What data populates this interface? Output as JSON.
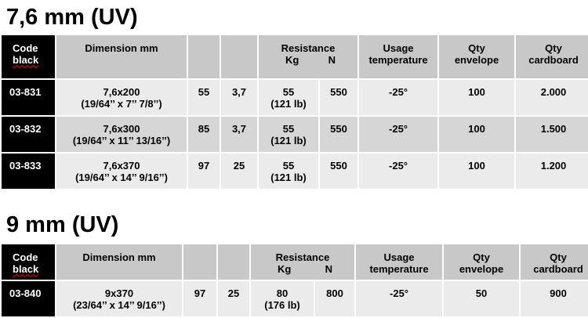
{
  "section1": {
    "title": "7,6 mm  (UV)",
    "headers": {
      "code_line1": "Code",
      "code_line2": "black",
      "dimension": "Dimension mm",
      "blank1": "",
      "blank2": "",
      "resistance": "Resistance",
      "kg": "Kg",
      "n": "N",
      "usage_line1": "Usage",
      "usage_line2": "temperature",
      "qty_env_line1": "Qty",
      "qty_env_line2": "envelope",
      "qty_card_line1": "Qty",
      "qty_card_line2": "cardboard"
    },
    "rows": [
      {
        "code": "03-831",
        "dim1": "7,6x200",
        "dim2": "(19/64’’ x 7’’ 7/8’’)",
        "c1": "55",
        "c2": "3,7",
        "kg1": "55",
        "kg2": "(121 lb)",
        "n": "550",
        "temp": "-25°",
        "env": "100",
        "card": "2.000"
      },
      {
        "code": "03-832",
        "dim1": "7,6x300",
        "dim2": "(19/64’’ x 11’’ 13/16’’)",
        "c1": "85",
        "c2": "3,7",
        "kg1": "55",
        "kg2": "(121 lb)",
        "n": "550",
        "temp": "-25°",
        "env": "100",
        "card": "1.500"
      },
      {
        "code": "03-833",
        "dim1": "7,6x370",
        "dim2": "(19/64’’ x 14’’ 9/16’’)",
        "c1": "97",
        "c2": "25",
        "kg1": "55",
        "kg2": "(121 lb)",
        "n": "550",
        "temp": "-25°",
        "env": "100",
        "card": "1.200"
      }
    ]
  },
  "section2": {
    "title": "9 mm  (UV)",
    "headers": {
      "code_line1": "Code",
      "code_line2": "black",
      "dimension": "Dimension mm",
      "resistance": "Resistance",
      "kg": "Kg",
      "n": "N",
      "usage_line1": "Usage",
      "usage_line2": "temperature",
      "qty_env_line1": "Qty",
      "qty_env_line2": "envelope",
      "qty_card_line1": "Qty",
      "qty_card_line2": "cardboard"
    },
    "rows": [
      {
        "code": "03-840",
        "dim1": "9x370",
        "dim2": "(23/64’’ x 14’’ 9/16’’)",
        "c1": "97",
        "c2": "25",
        "kg1": "80",
        "kg2": "(176 lb)",
        "n": "800",
        "temp": "-25°",
        "env": "50",
        "card": "900"
      }
    ]
  }
}
